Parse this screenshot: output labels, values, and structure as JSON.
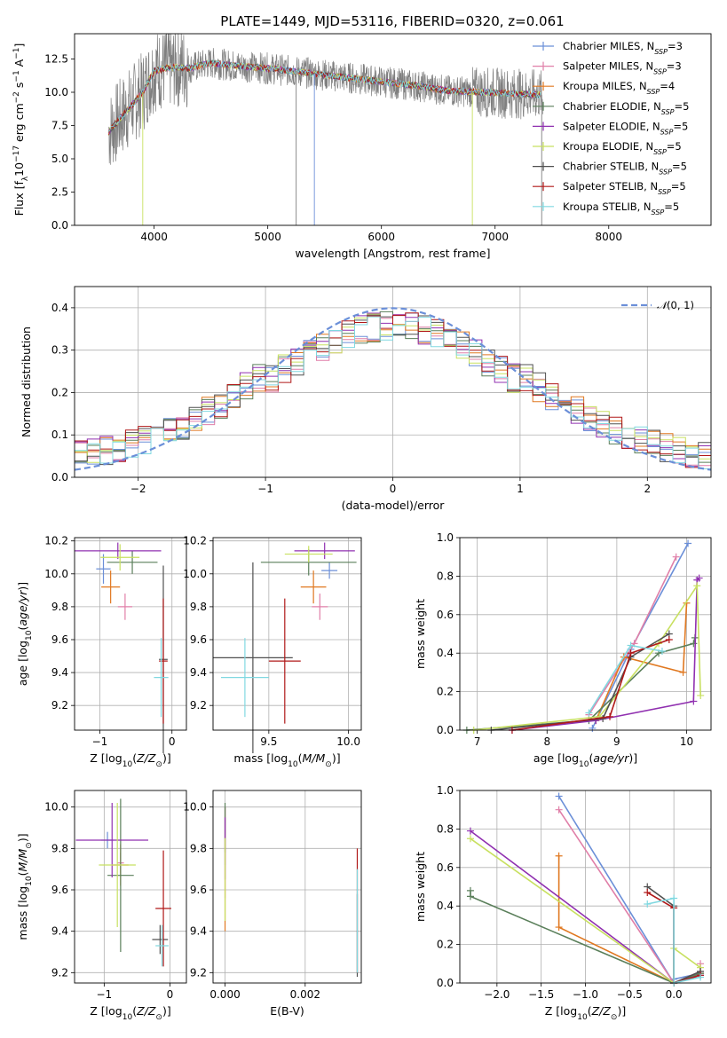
{
  "figure_title": "PLATE=1449, MJD=53116, FIBERID=0320, z=0.061",
  "palette": [
    "#6b8fd8",
    "#e07fa8",
    "#e07820",
    "#5a7f5a",
    "#9030b0",
    "#c8e060",
    "#505050",
    "#b01818",
    "#80d8e0"
  ],
  "chart_data": [
    {
      "id": "spectrum",
      "type": "line",
      "title": "PLATE=1449, MJD=53116, FIBERID=0320, z=0.061",
      "xlabel": "wavelength [Angstrom, rest frame]",
      "ylabel": "Flux [f$_\\lambda$10$^{-17}$ erg cm$^{-2}$ s$^{-1}$ A$^{-1}$]",
      "xlim": [
        3300,
        8900
      ],
      "ylim": [
        0,
        14.4
      ],
      "xticks": [
        4000,
        5000,
        6000,
        7000,
        8000
      ],
      "yticks": [
        0.0,
        2.5,
        5.0,
        7.5,
        10.0,
        12.5
      ],
      "legend_position": "right",
      "legend": [
        {
          "text": "Chabrier MILES, N",
          "sub": "SSP",
          "tail": "=3"
        },
        {
          "text": "Salpeter MILES, N",
          "sub": "SSP",
          "tail": "=3"
        },
        {
          "text": "Kroupa MILES, N",
          "sub": "SSP",
          "tail": "=4"
        },
        {
          "text": "Chabrier ELODIE, N",
          "sub": "SSP",
          "tail": "=5"
        },
        {
          "text": "Salpeter ELODIE, N",
          "sub": "SSP",
          "tail": "=5"
        },
        {
          "text": "Kroupa ELODIE, N",
          "sub": "SSP",
          "tail": "=5"
        },
        {
          "text": "Chabrier STELIB, N",
          "sub": "SSP",
          "tail": "=5"
        },
        {
          "text": "Salpeter STELIB, N",
          "sub": "SSP",
          "tail": "=5"
        },
        {
          "text": "Kroupa STELIB, N",
          "sub": "SSP",
          "tail": "=5"
        }
      ],
      "continuum": {
        "x": [
          3600,
          3700,
          3800,
          3900,
          4000,
          4100,
          4200,
          4300,
          4500,
          4700,
          5000,
          5300,
          5600,
          6000,
          6300,
          6600,
          6900,
          7200,
          7400
        ],
        "y": [
          7.0,
          8.0,
          9.0,
          10.0,
          11.6,
          11.8,
          11.9,
          11.8,
          12.2,
          12.0,
          11.8,
          11.5,
          11.2,
          10.8,
          10.5,
          10.1,
          10.0,
          9.9,
          9.8
        ]
      },
      "observed_range": [
        3600,
        7420
      ],
      "model_range": [
        3600,
        7400
      ],
      "noise_amplitude": 1.2,
      "dips": [
        {
          "x": 3900,
          "y": 0
        },
        {
          "x": 5250,
          "y": 0
        },
        {
          "x": 5410,
          "y": 0
        },
        {
          "x": 6800,
          "y": 0
        },
        {
          "x": 7410,
          "y": 0
        }
      ]
    },
    {
      "id": "residuals",
      "type": "step-histogram",
      "xlabel": "(data-model)/error",
      "ylabel": "Normed distribution",
      "xlim": [
        -2.5,
        2.5
      ],
      "ylim": [
        0,
        0.45
      ],
      "xticks": [
        -2,
        -1,
        0,
        1,
        2
      ],
      "yticks": [
        0.0,
        0.1,
        0.2,
        0.3,
        0.4
      ],
      "legend_label": "N(0,1)",
      "legend_position": "top-right",
      "bin_width": 0.1
    },
    {
      "id": "age_vs_Z",
      "type": "scatter-errorbar",
      "xlabel": "Z [log10(Z/Z⊙)]",
      "ylabel": "age  [log10(age/yr)]",
      "xlim": [
        -1.35,
        0.2
      ],
      "ylim": [
        9.05,
        10.22
      ],
      "xticks": [
        -1,
        0
      ],
      "yticks": [
        9.2,
        9.4,
        9.6,
        9.8,
        10.0,
        10.2
      ],
      "points": [
        {
          "x": -0.95,
          "y": 10.03,
          "xerr": 0.1,
          "yerr": 0.09
        },
        {
          "x": -0.65,
          "y": 9.8,
          "xerr": 0.1,
          "yerr": 0.08
        },
        {
          "x": -0.85,
          "y": 9.92,
          "xerr": 0.13,
          "yerr": 0.1
        },
        {
          "x": -0.55,
          "y": 10.07,
          "xerr": 0.35,
          "yerr": 0.07
        },
        {
          "x": -0.75,
          "y": 10.14,
          "xerr": 0.6,
          "yerr": 0.05
        },
        {
          "x": -0.72,
          "y": 10.1,
          "xerr": 0.27,
          "yerr": 0.08
        },
        {
          "x": -0.12,
          "y": 9.48,
          "xerr": 0.06,
          "yerr": 0.57
        },
        {
          "x": -0.12,
          "y": 9.47,
          "xerr": 0.06,
          "yerr": 0.38
        },
        {
          "x": -0.15,
          "y": 9.37,
          "xerr": 0.1,
          "yerr": 0.24
        }
      ]
    },
    {
      "id": "age_vs_mass",
      "type": "scatter-errorbar",
      "xlabel": "mass [log10(M/M⊙)]",
      "ylabel": "",
      "xlim": [
        9.15,
        10.08
      ],
      "ylim": [
        9.05,
        10.22
      ],
      "xticks": [
        9.5,
        10.0
      ],
      "yticks": [
        9.2,
        9.4,
        9.6,
        9.8,
        10.0,
        10.2
      ],
      "points": [
        {
          "x": 9.88,
          "y": 10.02,
          "xerr": 0.05,
          "yerr": 0.05
        },
        {
          "x": 9.82,
          "y": 9.8,
          "xerr": 0.05,
          "yerr": 0.08
        },
        {
          "x": 9.78,
          "y": 9.92,
          "xerr": 0.08,
          "yerr": 0.1
        },
        {
          "x": 9.75,
          "y": 10.07,
          "xerr": 0.3,
          "yerr": 0.08
        },
        {
          "x": 9.85,
          "y": 10.14,
          "xerr": 0.19,
          "yerr": 0.05
        },
        {
          "x": 9.75,
          "y": 10.12,
          "xerr": 0.15,
          "yerr": 0.05
        },
        {
          "x": 9.4,
          "y": 9.49,
          "xerr": 0.25,
          "yerr": 0.58
        },
        {
          "x": 9.6,
          "y": 9.47,
          "xerr": 0.1,
          "yerr": 0.38
        },
        {
          "x": 9.35,
          "y": 9.37,
          "xerr": 0.15,
          "yerr": 0.24
        }
      ]
    },
    {
      "id": "weight_vs_age",
      "type": "line",
      "xlabel": "age  [log10(age/yr)]",
      "ylabel": "mass weight",
      "xlim": [
        6.75,
        10.35
      ],
      "ylim": [
        0,
        1
      ],
      "xticks": [
        7,
        8,
        9,
        10
      ],
      "yticks": [
        0.0,
        0.2,
        0.4,
        0.6,
        0.8,
        1.0
      ],
      "series": [
        {
          "x": [
            8.65,
            9.2,
            10.02
          ],
          "y": [
            0.01,
            0.42,
            0.97
          ]
        },
        {
          "x": [
            8.6,
            9.25,
            9.85
          ],
          "y": [
            0.08,
            0.45,
            0.9
          ]
        },
        {
          "x": [
            8.7,
            9.1,
            9.95,
            10.0
          ],
          "y": [
            0.05,
            0.38,
            0.3,
            0.66
          ]
        },
        {
          "x": [
            6.85,
            8.6,
            9.6,
            10.1,
            10.12
          ],
          "y": [
            0.0,
            0.05,
            0.4,
            0.45,
            0.48
          ]
        },
        {
          "x": [
            7.5,
            8.7,
            10.1,
            10.15,
            10.18
          ],
          "y": [
            0.0,
            0.05,
            0.15,
            0.78,
            0.79
          ]
        },
        {
          "x": [
            6.95,
            8.75,
            9.6,
            10.15,
            10.2
          ],
          "y": [
            0.0,
            0.07,
            0.45,
            0.75,
            0.18
          ]
        },
        {
          "x": [
            7.2,
            8.8,
            9.2,
            9.75
          ],
          "y": [
            0.0,
            0.06,
            0.38,
            0.5
          ]
        },
        {
          "x": [
            7.5,
            8.9,
            9.2,
            9.75
          ],
          "y": [
            0.0,
            0.07,
            0.4,
            0.47
          ]
        },
        {
          "x": [
            8.6,
            9.2,
            9.65
          ],
          "y": [
            0.09,
            0.44,
            0.41
          ]
        }
      ]
    },
    {
      "id": "mass_vs_Z",
      "type": "scatter-errorbar",
      "xlabel": "Z [log10(Z/Z⊙)]",
      "ylabel": "mass [log10(M/M⊙)]",
      "xlim": [
        -1.45,
        0.25
      ],
      "ylim": [
        9.15,
        10.08
      ],
      "xticks": [
        -1,
        0
      ],
      "yticks": [
        9.2,
        9.4,
        9.6,
        9.8,
        10.0
      ],
      "points": [
        {
          "x": -0.95,
          "y": 9.84,
          "xerr": 0.1,
          "yerr": 0.04
        },
        {
          "x": -0.75,
          "y": 9.73,
          "xerr": 0.05,
          "yerr": 0.05
        },
        {
          "x": -0.75,
          "y": 9.72,
          "xerr": 0.12,
          "yerr": 0.1
        },
        {
          "x": -0.75,
          "y": 9.67,
          "xerr": 0.2,
          "yerr": 0.37
        },
        {
          "x": -0.88,
          "y": 9.84,
          "xerr": 0.55,
          "yerr": 0.18
        },
        {
          "x": -0.8,
          "y": 9.72,
          "xerr": 0.28,
          "yerr": 0.3
        },
        {
          "x": -0.15,
          "y": 9.36,
          "xerr": 0.12,
          "yerr": 0.07
        },
        {
          "x": -0.1,
          "y": 9.51,
          "xerr": 0.12,
          "yerr": 0.28
        },
        {
          "x": -0.12,
          "y": 9.33,
          "xerr": 0.1,
          "yerr": 0.1
        }
      ]
    },
    {
      "id": "mass_vs_ebv",
      "type": "scatter-errorbar",
      "xlabel": "E(B-V)",
      "ylabel": "",
      "xlim": [
        -0.0003,
        0.0034
      ],
      "ylim": [
        9.15,
        10.08
      ],
      "xticks": [
        0.0,
        0.002
      ],
      "yticks": [
        9.2,
        9.4,
        9.6,
        9.8,
        10.0
      ],
      "points": [
        {
          "x": 0.0,
          "y": 9.86,
          "xerr": 0,
          "yerr": 0.14
        },
        {
          "x": 0.0,
          "y": 9.78,
          "xerr": 0,
          "yerr": 0.22
        },
        {
          "x": 0.0,
          "y": 9.7,
          "xerr": 0,
          "yerr": 0.3
        },
        {
          "x": 0.0,
          "y": 9.9,
          "xerr": 0,
          "yerr": 0.12
        },
        {
          "x": 0.0,
          "y": 9.8,
          "xerr": 0,
          "yerr": 0.15
        },
        {
          "x": 0.0,
          "y": 9.65,
          "xerr": 0,
          "yerr": 0.2
        },
        {
          "x": 0.0033,
          "y": 9.38,
          "xerr": 0,
          "yerr": 0.2
        },
        {
          "x": 0.0033,
          "y": 9.5,
          "xerr": 0,
          "yerr": 0.3
        },
        {
          "x": 0.0033,
          "y": 9.45,
          "xerr": 0,
          "yerr": 0.25
        }
      ]
    },
    {
      "id": "weight_vs_Z",
      "type": "line",
      "xlabel": "Z [log10(Z/Z⊙)]",
      "ylabel": "mass weight",
      "xlim": [
        -2.42,
        0.42
      ],
      "ylim": [
        0,
        1
      ],
      "xticks": [
        -2.0,
        -1.5,
        -1.0,
        -0.5,
        0.0
      ],
      "yticks": [
        0.0,
        0.2,
        0.4,
        0.6,
        0.8,
        1.0
      ],
      "series": [
        {
          "x": [
            -1.3,
            0.0,
            0.0,
            0.3
          ],
          "y": [
            0.97,
            0.0,
            0.02,
            0.05
          ]
        },
        {
          "x": [
            -1.3,
            0.0,
            0.3,
            0.3
          ],
          "y": [
            0.9,
            0.0,
            0.06,
            0.1
          ]
        },
        {
          "x": [
            -1.3,
            -1.3,
            0.0,
            0.3
          ],
          "y": [
            0.66,
            0.29,
            0.0,
            0.05
          ]
        },
        {
          "x": [
            -2.3,
            -2.3,
            0.0,
            0.3
          ],
          "y": [
            0.48,
            0.45,
            0.0,
            0.05
          ]
        },
        {
          "x": [
            -2.3,
            0.0,
            0.3
          ],
          "y": [
            0.79,
            0.0,
            0.04
          ]
        },
        {
          "x": [
            -2.3,
            0.0,
            0.0,
            0.3
          ],
          "y": [
            0.75,
            0.0,
            0.18,
            0.08
          ]
        },
        {
          "x": [
            -0.3,
            0.0,
            0.0,
            0.3
          ],
          "y": [
            0.5,
            0.4,
            0.0,
            0.06
          ]
        },
        {
          "x": [
            -0.3,
            0.0,
            0.0,
            0.3
          ],
          "y": [
            0.47,
            0.39,
            0.0,
            0.04
          ]
        },
        {
          "x": [
            -0.3,
            0.0,
            0.0,
            0.3
          ],
          "y": [
            0.41,
            0.44,
            0.0,
            0.03
          ]
        }
      ]
    }
  ]
}
